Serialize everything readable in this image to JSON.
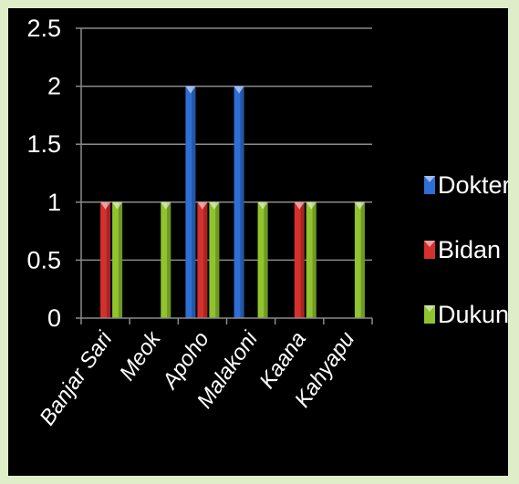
{
  "colors": {
    "page_bg": "#dfeec8",
    "chart_bg": "#000000",
    "gridline": "#8a8a8a",
    "text": "#ffffff"
  },
  "chart_data": {
    "type": "bar",
    "categories": [
      "Banjar Sari",
      "Meok",
      "Apoho",
      "Malakoni",
      "Kaana",
      "Kahyapu"
    ],
    "series": [
      {
        "name": "Dokter",
        "values": [
          0,
          0,
          2,
          2,
          0,
          0
        ],
        "color": "#2e6fd6"
      },
      {
        "name": "Bidan",
        "values": [
          1,
          0,
          1,
          0,
          1,
          0
        ],
        "color": "#d6302e"
      },
      {
        "name": "Dukun",
        "values": [
          1,
          1,
          1,
          1,
          1,
          1
        ],
        "color": "#8fc42e"
      }
    ],
    "yticks": [
      "0",
      "0.5",
      "1",
      "1.5",
      "2",
      "2.5"
    ],
    "ylim": [
      0,
      2.5
    ],
    "grid": true,
    "legend_position": "right"
  }
}
